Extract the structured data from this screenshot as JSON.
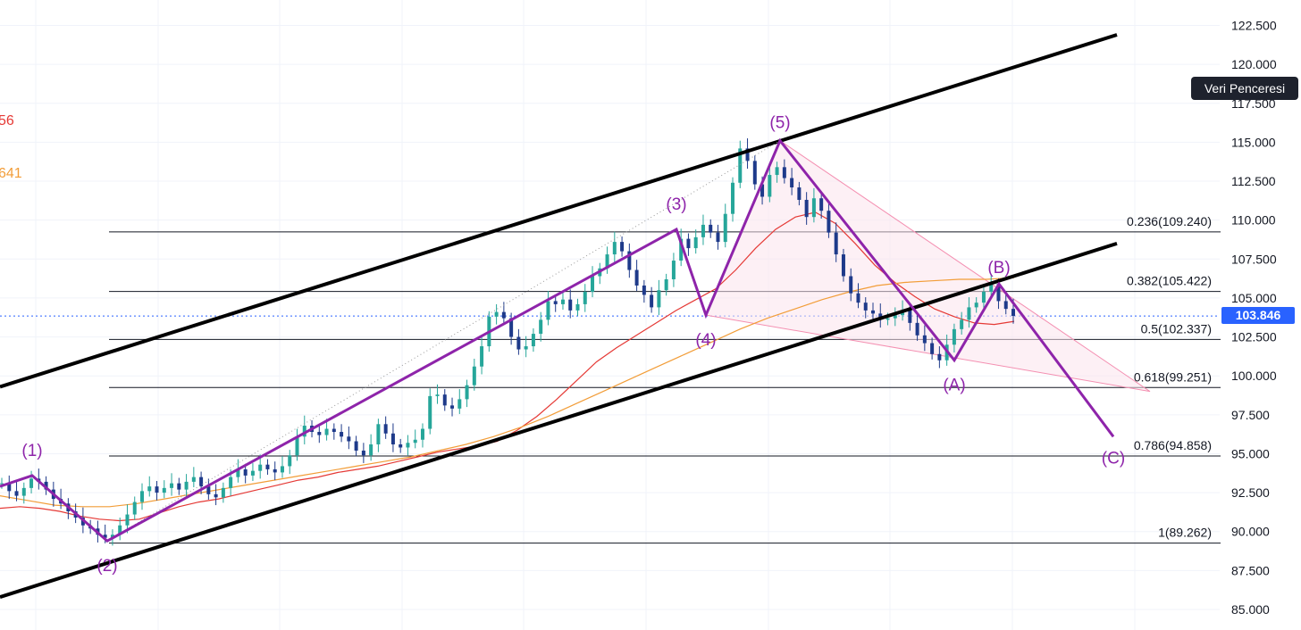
{
  "chart_data": {
    "type": "candlestick",
    "symbol": "",
    "ylim": [
      84.3,
      124.6
    ],
    "y_axis_ticks": [
      "85.000",
      "87.500",
      "90.000",
      "92.500",
      "95.000",
      "97.500",
      "100.000",
      "102.500",
      "105.000",
      "107.500",
      "110.000",
      "112.500",
      "115.000",
      "117.500",
      "120.000",
      "122.500"
    ],
    "grid": true,
    "indicator_labels": [
      {
        "text": "56",
        "color": "#e53935"
      },
      {
        "text": "641",
        "color": "#f29d38"
      }
    ],
    "last_price": "103.846",
    "fibonacci_levels": [
      {
        "ratio": "0.236",
        "price": 109.24,
        "label": "0.236(109.240)"
      },
      {
        "ratio": "0.382",
        "price": 105.422,
        "label": "0.382(105.422)"
      },
      {
        "ratio": "0.5",
        "price": 102.337,
        "label": "0.5(102.337)"
      },
      {
        "ratio": "0.618",
        "price": 99.251,
        "label": "0.618(99.251)"
      },
      {
        "ratio": "0.786",
        "price": 94.858,
        "label": "0.786(94.858)"
      },
      {
        "ratio": "1",
        "price": 89.262,
        "label": "1(89.262)"
      }
    ],
    "elliott_wave_points": [
      {
        "label": "(1)",
        "price": 93.6
      },
      {
        "label": "(2)",
        "price": 89.4
      },
      {
        "label": "(3)",
        "price": 109.4
      },
      {
        "label": "(4)",
        "price": 103.9
      },
      {
        "label": "(5)",
        "price": 115.1
      },
      {
        "label": "(A)",
        "price": 101.0
      },
      {
        "label": "(B)",
        "price": 105.9
      },
      {
        "label": "(C)",
        "price": 96.1
      }
    ],
    "channel_lines": [
      {
        "name": "upper",
        "from_price": 99.3,
        "to_price": 121.9
      },
      {
        "name": "lower",
        "from_price": 85.8,
        "to_price": 108.5
      }
    ],
    "series": [
      {
        "name": "",
        "type": "candles",
        "color_up": "#26a69a",
        "color_down": "#1e3a8a",
        "close": [
          93.1,
          92.6,
          92.3,
          92.8,
          93.4,
          93.2,
          92.7,
          92.1,
          91.8,
          91.3,
          90.9,
          90.4,
          90.2,
          89.8,
          89.6,
          89.8,
          90.4,
          91.1,
          91.9,
          92.6,
          92.9,
          92.5,
          92.8,
          93.1,
          92.7,
          93.2,
          93.5,
          92.9,
          92.4,
          92.2,
          92.8,
          93.5,
          94.0,
          93.6,
          93.9,
          94.3,
          94.0,
          93.8,
          94.2,
          94.9,
          96.1,
          96.8,
          96.4,
          96.2,
          96.6,
          96.4,
          96.1,
          95.8,
          95.2,
          94.9,
          95.6,
          96.9,
          96.3,
          95.6,
          95.4,
          95.7,
          95.9,
          96.6,
          98.7,
          98.8,
          98.1,
          97.9,
          98.5,
          99.4,
          100.6,
          101.9,
          103.8,
          104.1,
          103.7,
          102.5,
          101.7,
          101.9,
          102.7,
          103.6,
          104.8,
          104.6,
          104.9,
          104.2,
          104.6,
          105.4,
          106.4,
          106.9,
          107.8,
          108.6,
          108.0,
          106.8,
          105.8,
          105.2,
          104.4,
          105.5,
          106.2,
          107.4,
          108.8,
          108.2,
          108.9,
          109.7,
          109.2,
          108.6,
          110.4,
          112.4,
          114.6,
          113.8,
          112.3,
          111.5,
          112.9,
          113.4,
          112.7,
          112.1,
          111.3,
          110.2,
          111.4,
          110.6,
          109.2,
          107.8,
          106.4,
          105.3,
          104.7,
          104.2,
          104.0,
          103.6,
          103.7,
          103.9,
          104.2,
          103.4,
          102.6,
          102.1,
          101.4,
          101.0,
          102.0,
          103.0,
          103.6,
          104.4,
          104.7,
          105.4,
          105.9,
          104.8,
          104.3,
          103.85
        ]
      },
      {
        "name": "",
        "type": "moving_average",
        "color": "#e53935",
        "values": [
          91.5,
          91.6,
          91.5,
          91.3,
          91.0,
          90.8,
          90.7,
          90.8,
          91.2,
          91.6,
          91.9,
          92.1,
          92.4,
          92.7,
          93.0,
          93.3,
          93.5,
          93.8,
          94.0,
          94.2,
          94.5,
          94.8,
          95.1,
          95.3,
          95.5,
          95.8,
          96.5,
          97.4,
          98.5,
          99.7,
          100.9,
          101.8,
          102.6,
          103.4,
          104.2,
          104.9,
          105.6,
          106.8,
          108.2,
          109.4,
          110.2,
          110.5,
          109.8,
          108.5,
          107.1,
          106.0,
          105.1,
          104.3,
          103.8,
          103.4,
          103.3,
          103.5
        ]
      },
      {
        "name": "",
        "type": "moving_average",
        "color": "#f29d38",
        "values": [
          92.3,
          92.0,
          91.7,
          91.6,
          91.6,
          91.8,
          92.1,
          92.4,
          92.7,
          93.0,
          93.3,
          93.6,
          93.9,
          94.2,
          94.5,
          94.8,
          95.2,
          95.6,
          96.1,
          96.7,
          97.4,
          98.2,
          99.0,
          99.8,
          100.6,
          101.4,
          102.2,
          103.0,
          103.7,
          104.3,
          104.9,
          105.4,
          105.8,
          106.0,
          106.1,
          106.2,
          106.2,
          106.3
        ]
      }
    ]
  },
  "overlay": {
    "data_window_label": "Veri Penceresi"
  }
}
